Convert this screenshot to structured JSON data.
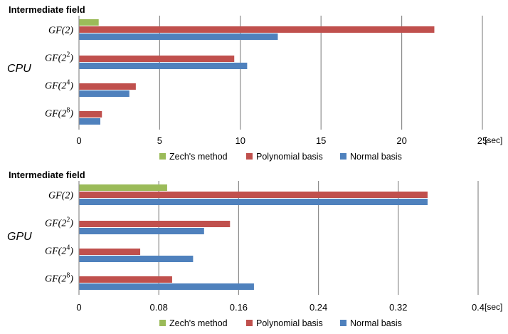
{
  "chart_data": [
    {
      "type": "bar",
      "orientation": "horizontal",
      "processor_label": "CPU",
      "category_axis_title": "Intermediate field",
      "categories": [
        {
          "base": "GF(2",
          "exp": "",
          "close": ")"
        },
        {
          "base": "GF(2",
          "exp": "2",
          "close": ")"
        },
        {
          "base": "GF(2",
          "exp": "4",
          "close": ")"
        },
        {
          "base": "GF(2",
          "exp": "8",
          "close": ")"
        }
      ],
      "series": [
        {
          "name": "Zech's method",
          "color": "#9bbb59",
          "values": [
            1.2,
            null,
            null,
            null
          ]
        },
        {
          "name": "Polynomial basis",
          "color": "#c0504d",
          "values": [
            22.0,
            9.6,
            3.5,
            1.4
          ]
        },
        {
          "name": "Normal basis",
          "color": "#4f81bd",
          "values": [
            12.3,
            10.4,
            3.1,
            1.3
          ]
        }
      ],
      "xlim": [
        0,
        25
      ],
      "xticks": [
        0,
        5,
        10,
        15,
        20,
        25
      ],
      "xtick_labels": [
        "0",
        "5",
        "10",
        "15",
        "20",
        "25"
      ],
      "unit": "[sec]",
      "grid": true,
      "legend_position": "bottom"
    },
    {
      "type": "bar",
      "orientation": "horizontal",
      "processor_label": "GPU",
      "category_axis_title": "Intermediate field",
      "categories": [
        {
          "base": "GF(2",
          "exp": "",
          "close": ")"
        },
        {
          "base": "GF(2",
          "exp": "2",
          "close": ")"
        },
        {
          "base": "GF(2",
          "exp": "4",
          "close": ")"
        },
        {
          "base": "GF(2",
          "exp": "8",
          "close": ")"
        }
      ],
      "series": [
        {
          "name": "Zech's method",
          "color": "#9bbb59",
          "values": [
            0.088,
            null,
            null,
            null
          ]
        },
        {
          "name": "Polynomial basis",
          "color": "#c0504d",
          "values": [
            0.349,
            0.151,
            0.061,
            0.093
          ]
        },
        {
          "name": "Normal basis",
          "color": "#4f81bd",
          "values": [
            0.349,
            0.125,
            0.114,
            0.175
          ]
        }
      ],
      "xlim": [
        0,
        0.4
      ],
      "xticks": [
        0,
        0.08,
        0.16,
        0.24,
        0.32,
        0.4
      ],
      "xtick_labels": [
        "0",
        "0.08",
        "0.16",
        "0.24",
        "0.32",
        "0.4"
      ],
      "unit": "[sec]",
      "grid": true,
      "legend_position": "bottom"
    }
  ]
}
